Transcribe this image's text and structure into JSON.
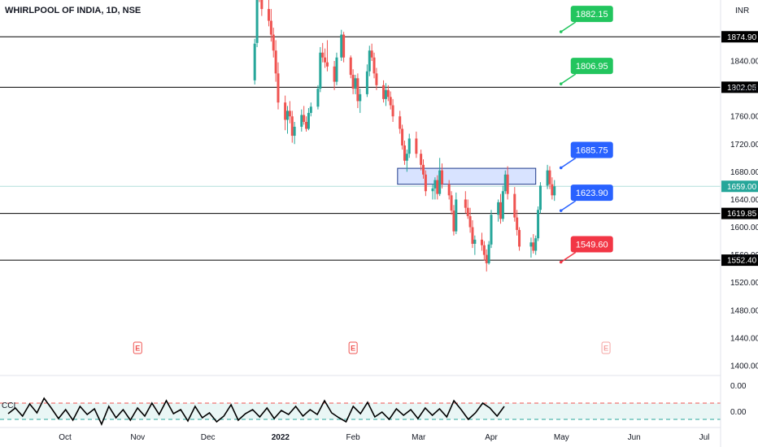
{
  "chart_data": {
    "type": "candlestick",
    "title": "WHIRLPOOL OF INDIA, 1D, NSE",
    "currency": "INR",
    "y_ticks": [
      1400,
      1440,
      1480,
      1520,
      1560,
      1600,
      1640,
      1680,
      1720,
      1760,
      1800,
      1840
    ],
    "y_tick_labels": [
      "1400.00",
      "1440.00",
      "1480.00",
      "1520.00",
      "1560.00",
      "1600.00",
      "1640.00",
      "1680.00",
      "1720.00",
      "1760.00",
      "1800.00",
      "1840.00"
    ],
    "x_ticks": [
      {
        "label": "Oct",
        "date": "2021-10-01",
        "bold": false
      },
      {
        "label": "Nov",
        "date": "2021-11-01",
        "bold": false
      },
      {
        "label": "Dec",
        "date": "2021-12-01",
        "bold": false
      },
      {
        "label": "2022",
        "date": "2022-01-01",
        "bold": true
      },
      {
        "label": "Feb",
        "date": "2022-02-01",
        "bold": false
      },
      {
        "label": "Mar",
        "date": "2022-03-01",
        "bold": false
      },
      {
        "label": "Apr",
        "date": "2022-04-01",
        "bold": false
      },
      {
        "label": "May",
        "date": "2022-05-01",
        "bold": false
      },
      {
        "label": "Jun",
        "date": "2022-06-01",
        "bold": false
      },
      {
        "label": "Jul",
        "date": "2022-07-01",
        "bold": false
      }
    ],
    "last_price": {
      "value": 1659.0,
      "label": "1659.00"
    },
    "horizontal_levels": [
      {
        "value": 1874.9,
        "label": "1874.90"
      },
      {
        "value": 1802.05,
        "label": "1802.05"
      },
      {
        "value": 1619.85,
        "label": "1619.85"
      },
      {
        "value": 1552.4,
        "label": "1552.40"
      }
    ],
    "zone": {
      "from_date": "2022-02-20",
      "to_date": "2022-04-20",
      "low": 1662,
      "high": 1685
    },
    "callouts": [
      {
        "label": "1882.15",
        "value": 1882.15,
        "color": "#22c55e",
        "text_color": "#ffffff"
      },
      {
        "label": "1806.95",
        "value": 1806.95,
        "color": "#22c55e",
        "text_color": "#ffffff"
      },
      {
        "label": "1685.75",
        "value": 1685.75,
        "color": "#2962ff",
        "text_color": "#ffffff"
      },
      {
        "label": "1623.90",
        "value": 1623.9,
        "color": "#2962ff",
        "text_color": "#ffffff"
      },
      {
        "label": "1549.60",
        "value": 1549.6,
        "color": "#f23645",
        "text_color": "#ffffff"
      }
    ],
    "earnings_markers": [
      {
        "date": "2021-11-01",
        "label": "E",
        "past": true
      },
      {
        "date": "2022-02-01",
        "label": "E",
        "past": true
      },
      {
        "date": "2022-05-20",
        "label": "E",
        "past": false
      }
    ],
    "candles": [
      [
        "2021-12-21",
        1812,
        1872,
        1806,
        1865
      ],
      [
        "2021-12-22",
        1866,
        1960,
        1860,
        1940
      ],
      [
        "2021-12-23",
        1940,
        1975,
        1925,
        1935
      ],
      [
        "2021-12-24",
        1935,
        1950,
        1905,
        1915
      ],
      [
        "2021-12-27",
        1915,
        1930,
        1890,
        1898
      ],
      [
        "2021-12-28",
        1898,
        1915,
        1868,
        1878
      ],
      [
        "2021-12-29",
        1878,
        1888,
        1845,
        1855
      ],
      [
        "2021-12-30",
        1855,
        1870,
        1810,
        1822
      ],
      [
        "2021-12-31",
        1822,
        1838,
        1770,
        1780
      ],
      [
        "2022-01-03",
        1780,
        1790,
        1740,
        1755
      ],
      [
        "2022-01-04",
        1755,
        1775,
        1735,
        1768
      ],
      [
        "2022-01-05",
        1768,
        1782,
        1750,
        1760
      ],
      [
        "2022-01-06",
        1760,
        1768,
        1722,
        1732
      ],
      [
        "2022-01-07",
        1732,
        1752,
        1720,
        1745
      ],
      [
        "2022-01-10",
        1745,
        1770,
        1738,
        1762
      ],
      [
        "2022-01-11",
        1762,
        1775,
        1748,
        1752
      ],
      [
        "2022-01-12",
        1752,
        1760,
        1738,
        1742
      ],
      [
        "2022-01-13",
        1742,
        1772,
        1740,
        1765
      ],
      [
        "2022-01-14",
        1765,
        1780,
        1760,
        1774
      ],
      [
        "2022-01-17",
        1774,
        1805,
        1770,
        1800
      ],
      [
        "2022-01-18",
        1800,
        1860,
        1795,
        1852
      ],
      [
        "2022-01-19",
        1852,
        1866,
        1838,
        1845
      ],
      [
        "2022-01-20",
        1845,
        1858,
        1830,
        1838
      ],
      [
        "2022-01-21",
        1838,
        1870,
        1825,
        1832
      ],
      [
        "2022-01-24",
        1832,
        1840,
        1798,
        1810
      ],
      [
        "2022-01-25",
        1810,
        1852,
        1805,
        1845
      ],
      [
        "2022-01-27",
        1845,
        1885,
        1840,
        1878
      ],
      [
        "2022-01-28",
        1878,
        1882,
        1838,
        1845
      ],
      [
        "2022-01-31",
        1845,
        1848,
        1815,
        1820
      ],
      [
        "2022-02-01",
        1820,
        1828,
        1792,
        1800
      ],
      [
        "2022-02-02",
        1800,
        1820,
        1792,
        1815
      ],
      [
        "2022-02-03",
        1815,
        1822,
        1772,
        1782
      ],
      [
        "2022-02-04",
        1782,
        1800,
        1765,
        1792
      ],
      [
        "2022-02-07",
        1792,
        1835,
        1788,
        1825
      ],
      [
        "2022-02-08",
        1825,
        1862,
        1818,
        1855
      ],
      [
        "2022-02-09",
        1855,
        1865,
        1840,
        1845
      ],
      [
        "2022-02-10",
        1845,
        1852,
        1815,
        1822
      ],
      [
        "2022-02-11",
        1822,
        1830,
        1798,
        1805
      ],
      [
        "2022-02-14",
        1805,
        1812,
        1780,
        1785
      ],
      [
        "2022-02-15",
        1785,
        1808,
        1775,
        1798
      ],
      [
        "2022-02-16",
        1798,
        1805,
        1782,
        1788
      ],
      [
        "2022-02-17",
        1788,
        1796,
        1770,
        1776
      ],
      [
        "2022-02-18",
        1776,
        1785,
        1752,
        1760
      ],
      [
        "2022-02-21",
        1760,
        1768,
        1735,
        1742
      ],
      [
        "2022-02-22",
        1742,
        1748,
        1712,
        1718
      ],
      [
        "2022-02-23",
        1718,
        1725,
        1690,
        1696
      ],
      [
        "2022-02-24",
        1696,
        1712,
        1680,
        1706
      ],
      [
        "2022-02-25",
        1706,
        1735,
        1700,
        1728
      ],
      [
        "2022-02-28",
        1728,
        1738,
        1700,
        1706
      ],
      [
        "2022-03-02",
        1706,
        1712,
        1682,
        1690
      ],
      [
        "2022-03-03",
        1690,
        1698,
        1670,
        1676
      ],
      [
        "2022-03-04",
        1676,
        1682,
        1645,
        1652
      ],
      [
        "2022-03-07",
        1652,
        1662,
        1640,
        1656
      ],
      [
        "2022-03-08",
        1656,
        1672,
        1640,
        1668
      ],
      [
        "2022-03-09",
        1668,
        1675,
        1640,
        1648
      ],
      [
        "2022-03-10",
        1648,
        1700,
        1645,
        1682
      ],
      [
        "2022-03-11",
        1682,
        1692,
        1656,
        1662
      ],
      [
        "2022-03-14",
        1662,
        1668,
        1640,
        1646
      ],
      [
        "2022-03-15",
        1646,
        1652,
        1618,
        1624
      ],
      [
        "2022-03-16",
        1624,
        1632,
        1588,
        1594
      ],
      [
        "2022-03-17",
        1594,
        1650,
        1590,
        1640
      ],
      [
        "2022-03-21",
        1640,
        1652,
        1620,
        1628
      ],
      [
        "2022-03-22",
        1628,
        1640,
        1612,
        1616
      ],
      [
        "2022-03-23",
        1616,
        1628,
        1592,
        1600
      ],
      [
        "2022-03-24",
        1600,
        1610,
        1570,
        1576
      ],
      [
        "2022-03-25",
        1576,
        1588,
        1560,
        1582
      ],
      [
        "2022-03-28",
        1582,
        1592,
        1566,
        1574
      ],
      [
        "2022-03-29",
        1574,
        1580,
        1552,
        1560
      ],
      [
        "2022-03-30",
        1560,
        1568,
        1536,
        1548
      ],
      [
        "2022-03-31",
        1548,
        1580,
        1546,
        1575
      ],
      [
        "2022-04-01",
        1575,
        1625,
        1570,
        1618
      ],
      [
        "2022-04-04",
        1618,
        1640,
        1608,
        1636
      ],
      [
        "2022-04-05",
        1636,
        1648,
        1605,
        1612
      ],
      [
        "2022-04-06",
        1612,
        1660,
        1608,
        1652
      ],
      [
        "2022-04-07",
        1652,
        1682,
        1648,
        1676
      ],
      [
        "2022-04-08",
        1676,
        1688,
        1640,
        1648
      ],
      [
        "2022-04-11",
        1648,
        1658,
        1608,
        1614
      ],
      [
        "2022-04-12",
        1614,
        1625,
        1588,
        1596
      ],
      [
        "2022-04-13",
        1596,
        1600,
        1566,
        1572
      ],
      [
        "2022-04-18",
        1572,
        1585,
        1556,
        1578
      ],
      [
        "2022-04-19",
        1578,
        1590,
        1562,
        1566
      ],
      [
        "2022-04-20",
        1566,
        1588,
        1560,
        1584
      ],
      [
        "2022-04-21",
        1584,
        1630,
        1580,
        1625
      ],
      [
        "2022-04-22",
        1625,
        1665,
        1620,
        1660
      ],
      [
        "2022-04-25",
        1660,
        1690,
        1655,
        1682
      ],
      [
        "2022-04-26",
        1682,
        1688,
        1655,
        1662
      ],
      [
        "2022-04-27",
        1662,
        1672,
        1640,
        1646
      ],
      [
        "2022-04-28",
        1646,
        1668,
        1638,
        1659
      ]
    ],
    "indicator": {
      "name": "CCI",
      "label": "CCI",
      "y_tick_labels": [
        "0.00",
        "0.00"
      ],
      "bands": {
        "upper": 100,
        "lower": -100
      },
      "series": [
        [
          "2021-09-01",
          -30
        ],
        [
          "2021-09-08",
          40
        ],
        [
          "2021-09-15",
          -60
        ],
        [
          "2021-09-22",
          90
        ],
        [
          "2021-09-29",
          -20
        ],
        [
          "2021-10-06",
          160
        ],
        [
          "2021-10-13",
          40
        ],
        [
          "2021-10-20",
          -90
        ],
        [
          "2021-10-27",
          20
        ],
        [
          "2021-11-03",
          -110
        ],
        [
          "2021-11-10",
          60
        ],
        [
          "2021-11-17",
          -40
        ],
        [
          "2021-11-24",
          30
        ],
        [
          "2021-12-01",
          -160
        ],
        [
          "2021-12-08",
          60
        ],
        [
          "2021-12-15",
          -80
        ],
        [
          "2021-12-22",
          20
        ],
        [
          "2021-12-29",
          -110
        ],
        [
          "2022-01-05",
          40
        ],
        [
          "2022-01-12",
          -60
        ],
        [
          "2022-01-19",
          100
        ],
        [
          "2022-01-26",
          -40
        ],
        [
          "2022-02-02",
          130
        ],
        [
          "2022-02-09",
          -30
        ],
        [
          "2022-02-16",
          20
        ],
        [
          "2022-02-23",
          -120
        ],
        [
          "2022-03-02",
          60
        ],
        [
          "2022-03-09",
          -80
        ],
        [
          "2022-03-16",
          -20
        ],
        [
          "2022-03-23",
          -130
        ],
        [
          "2022-03-30",
          -60
        ],
        [
          "2022-04-06",
          80
        ],
        [
          "2022-04-13",
          -110
        ],
        [
          "2022-04-20",
          -30
        ],
        [
          "2022-04-27",
          20
        ],
        [
          "2022-05-04",
          -70
        ],
        [
          "2022-05-11",
          40
        ],
        [
          "2022-05-18",
          -90
        ],
        [
          "2022-05-25",
          10
        ],
        [
          "2022-06-01",
          -40
        ],
        [
          "2022-06-08",
          60
        ],
        [
          "2022-06-15",
          -60
        ],
        [
          "2022-06-22",
          20
        ],
        [
          "2022-06-29",
          -40
        ],
        [
          "2022-07-06",
          130
        ],
        [
          "2022-07-13",
          -20
        ],
        [
          "2022-07-20",
          -80
        ],
        [
          "2022-07-27",
          -130
        ],
        [
          "2022-08-03",
          60
        ],
        [
          "2022-08-10",
          -30
        ],
        [
          "2022-08-17",
          110
        ],
        [
          "2022-08-24",
          -70
        ],
        [
          "2022-08-31",
          -10
        ],
        [
          "2022-09-07",
          -100
        ],
        [
          "2022-09-14",
          30
        ],
        [
          "2022-09-21",
          -50
        ],
        [
          "2022-09-28",
          20
        ],
        [
          "2022-10-05",
          -90
        ],
        [
          "2022-10-12",
          40
        ],
        [
          "2022-10-19",
          -50
        ],
        [
          "2022-10-26",
          30
        ],
        [
          "2022-11-02",
          -70
        ],
        [
          "2022-11-09",
          130
        ],
        [
          "2022-11-16",
          20
        ],
        [
          "2022-11-23",
          -100
        ],
        [
          "2022-11-30",
          -20
        ],
        [
          "2022-12-07",
          100
        ],
        [
          "2022-12-14",
          40
        ],
        [
          "2022-12-21",
          -60
        ],
        [
          "2022-12-28",
          60
        ]
      ]
    },
    "colors": {
      "up": "#26a69a",
      "down": "#ef5350",
      "grid": "#f0f3fa",
      "level": "#000000",
      "last": "#26a69a"
    }
  }
}
